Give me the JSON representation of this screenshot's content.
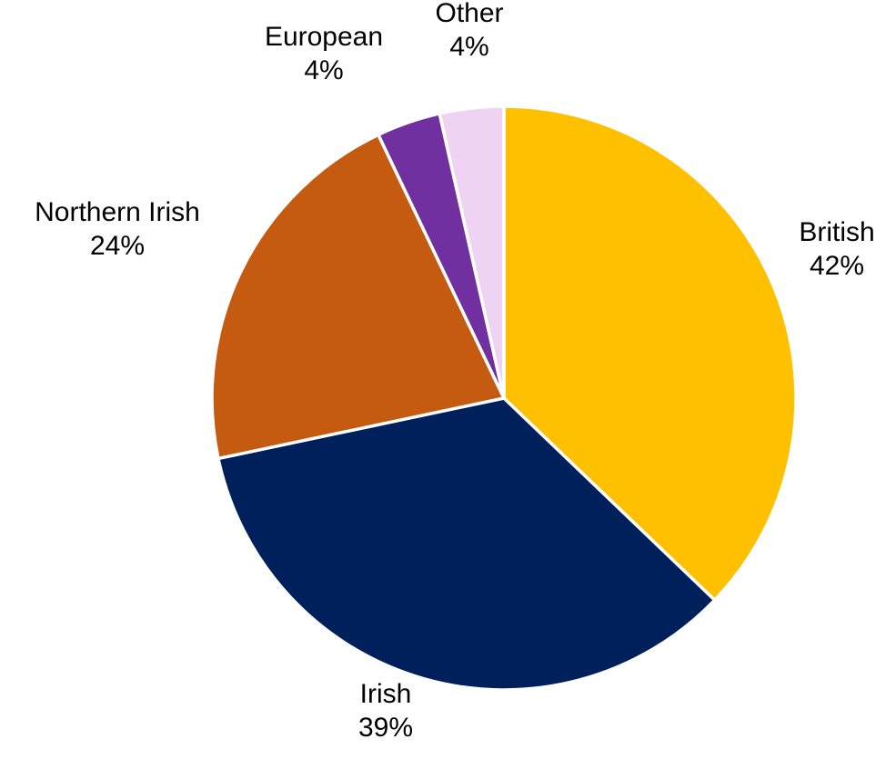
{
  "chart_data": {
    "type": "pie",
    "slices": [
      {
        "label": "British",
        "value": 42,
        "value_label": "42%",
        "color": "#FFC000"
      },
      {
        "label": "Irish",
        "value": 39,
        "value_label": "39%",
        "color": "#00205C"
      },
      {
        "label": "Northern Irish",
        "value": 24,
        "value_label": "24%",
        "color": "#C55A11"
      },
      {
        "label": "European",
        "value": 4,
        "value_label": "4%",
        "color": "#7030A0"
      },
      {
        "label": "Other",
        "value": 4,
        "value_label": "4%",
        "color": "#EED3F2"
      }
    ],
    "start_angle_deg": 0,
    "direction": "clockwise",
    "legend": "none",
    "labels": "outside"
  }
}
